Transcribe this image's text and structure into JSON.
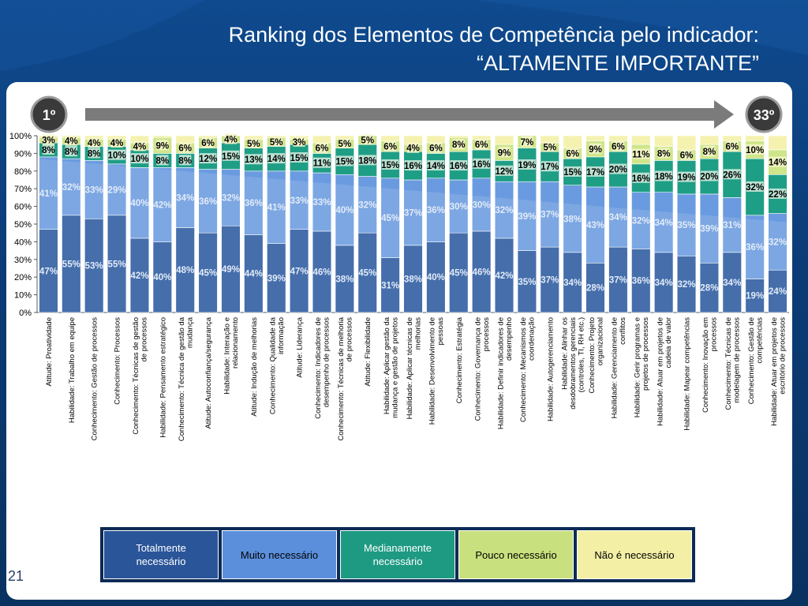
{
  "slide": {
    "title_line1": "Ranking dos Elementos de Competência pelo indicador:",
    "title_line2": "“ALTAMENTE IMPORTANTE”",
    "rank_first": "1º",
    "rank_last": "33º",
    "page_number": "21"
  },
  "colors": {
    "totalmente": "#2c5aa0",
    "muito": "#6a9be0",
    "medianamente": "#1f9e86",
    "pouco": "#cfe58a",
    "nao": "#f5f2b0",
    "label_light": "#dfe9f7",
    "label_dark": "#000000"
  },
  "legend": [
    {
      "label": "Totalmente necessário",
      "color": "#2a5599",
      "text_color": "#ffffff"
    },
    {
      "label": "Muito necessário",
      "color": "#5b8fdb",
      "text_color": "#000000"
    },
    {
      "label": "Medianamente necessário",
      "color": "#1e9a83",
      "text_color": "#ffffff"
    },
    {
      "label": "Pouco necessário",
      "color": "#c9e07e",
      "text_color": "#000000"
    },
    {
      "label": "Não é necessário",
      "color": "#f3f0a6",
      "text_color": "#000000"
    }
  ],
  "chart_data": {
    "type": "bar",
    "stacked": true,
    "ylim": [
      0,
      100
    ],
    "yticks": [
      "0%",
      "10%",
      "20%",
      "30%",
      "40%",
      "50%",
      "60%",
      "70%",
      "80%",
      "90%",
      "100%"
    ],
    "categories": [
      "Atitude: Proatividade",
      "Habilidade: Trabalho em equipe",
      "Conhecimento: Gestão de processos",
      "Conhecimento: Processos",
      "Conhecimento: Técnicas de gestão de processos",
      "Habilidade: Pensamento estratégico",
      "Conhecimento: Técnica de gestão da mudança",
      "Atitude: Autoconfiança/segurança",
      "Habilidade: Interação e relacionamento",
      "Atitude: Indução de melhorias",
      "Conhecimento: Qualidade da informação",
      "Atitude: Liderança",
      "Conhecimento: Indicadores de desempenho de processos",
      "Conhecimento: Técnicas de melhoria de processos",
      "Atitude: Flexibilidade",
      "Habilidade: Aplicar gestão da mudança e gestão de projetos",
      "Habilidade: Aplicar técnicas de melhorias",
      "Habilidade: Desenvolvimento de pessoas",
      "Conhecimento: Estratégia",
      "Conhecimento: Governança de processos",
      "Habilidade: Definir indicadores de desempenho",
      "Conhecimento: Mecanismos de coordenação",
      "Habilidade: Autogerenciamento",
      "Habilidade: Alinhar os desdobramentos gerenciais (controles, TI, RH etc.)",
      "Conhecimento: Projeto organizacional",
      "Habilidade: Gerenciamento de conflitos",
      "Habilidade: Gerir programas e projetos de processos",
      "Habilidade: Atuar em projetos de cadeia de valor",
      "Habilidade: Mapear competências",
      "Conhecimento: Inovação em processos",
      "Conhecimento: Técnicas de modelagem de processos",
      "Conhecimento: Gestão de competências",
      "Habilidade: Atuar em projetos de escritório de processos"
    ],
    "series": [
      {
        "name": "Totalmente necessário",
        "values": [
          47,
          55,
          53,
          55,
          42,
          40,
          48,
          45,
          49,
          44,
          39,
          47,
          46,
          38,
          45,
          31,
          38,
          40,
          45,
          46,
          42,
          35,
          37,
          34,
          28,
          37,
          36,
          34,
          32,
          28,
          34,
          19,
          24
        ]
      },
      {
        "name": "Muito necessário",
        "values": [
          41,
          32,
          33,
          29,
          40,
          42,
          34,
          36,
          32,
          36,
          41,
          33,
          33,
          40,
          32,
          45,
          37,
          36,
          30,
          30,
          32,
          39,
          37,
          38,
          43,
          34,
          32,
          34,
          35,
          39,
          31,
          36,
          32
        ]
      },
      {
        "name": "Medianamente necessário",
        "values": [
          8,
          8,
          8,
          10,
          10,
          8,
          8,
          12,
          15,
          13,
          14,
          15,
          11,
          15,
          18,
          15,
          16,
          14,
          16,
          16,
          12,
          19,
          17,
          15,
          17,
          20,
          16,
          18,
          19,
          20,
          26,
          32,
          22
        ]
      },
      {
        "name": "Pouco necessário",
        "values": [
          3,
          4,
          4,
          4,
          4,
          9,
          6,
          6,
          4,
          5,
          5,
          3,
          6,
          5,
          5,
          6,
          4,
          6,
          8,
          6,
          9,
          7,
          5,
          6,
          9,
          6,
          11,
          8,
          6,
          8,
          6,
          10,
          14
        ]
      },
      {
        "name": "Não é necessário",
        "values": [
          1,
          1,
          2,
          2,
          4,
          1,
          4,
          1,
          0,
          2,
          1,
          2,
          4,
          2,
          0,
          3,
          5,
          4,
          1,
          2,
          5,
          0,
          4,
          7,
          3,
          3,
          5,
          6,
          8,
          5,
          3,
          3,
          8
        ]
      }
    ],
    "labels": {
      "totalmente": [
        "47%",
        "55%",
        "53%",
        "55%",
        "42%",
        "40%",
        "48%",
        "45%",
        "49%",
        "44%",
        "39%",
        "47%",
        "46%",
        "38%",
        "45%",
        "31%",
        "38%",
        "40%",
        "45%",
        "46%",
        "42%",
        "35%",
        "37%",
        "34%",
        "28%",
        "37%",
        "36%",
        "34%",
        "32%",
        "28%",
        "34%",
        "19%",
        "24%"
      ],
      "muito": [
        "41%",
        "32%",
        "33%",
        "29%",
        "40%",
        "42%",
        "34%",
        "36%",
        "32%",
        "36%",
        "41%",
        "33%",
        "33%",
        "40%",
        "32%",
        "45%",
        "37%",
        "36%",
        "30%",
        "30%",
        "32%",
        "39%",
        "37%",
        "38%",
        "43%",
        "34%",
        "32%",
        "34%",
        "35%",
        "39%",
        "31%",
        "36%",
        "32%"
      ],
      "medianamente": [
        "8%",
        "8%",
        "8%",
        "10%",
        "10%",
        "8%",
        "8%",
        "12%",
        "15%",
        "13%",
        "14%",
        "15%",
        "11%",
        "15%",
        "18%",
        "15%",
        "16%",
        "14%",
        "16%",
        "16%",
        "12%",
        "19%",
        "17%",
        "15%",
        "17%",
        "20%",
        "16%",
        "18%",
        "19%",
        "20%",
        "26%",
        "32%",
        "22%"
      ],
      "pouco": [
        "3%",
        "4%",
        "4%",
        "4%",
        "4%",
        "9%",
        "6%",
        "6%",
        "4%",
        "5%",
        "5%",
        "3%",
        "6%",
        "5%",
        "5%",
        "6%",
        "4%",
        "6%",
        "8%",
        "6%",
        "9%",
        "7%",
        "5%",
        "6%",
        "9%",
        "6%",
        "11%",
        "8%",
        "6%",
        "8%",
        "6%",
        "10%",
        "14%"
      ]
    }
  }
}
